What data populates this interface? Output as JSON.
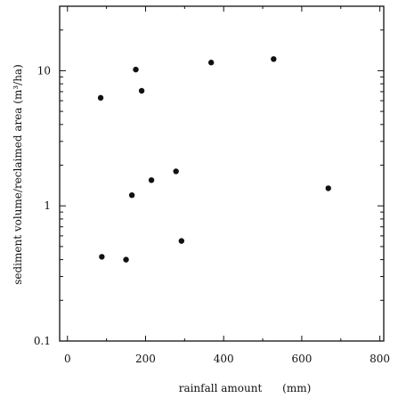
{
  "chart_data": {
    "type": "scatter",
    "xlabel": "rainfall amount      (mm)",
    "ylabel": "sediment volume/reclaimed area (m³/ha)",
    "xlim": [
      -20,
      810
    ],
    "ylim": [
      0.1,
      30
    ],
    "yscale": "log",
    "x_ticks": [
      0,
      200,
      400,
      600,
      800
    ],
    "x_tick_labels": [
      "0",
      "200",
      "400",
      "600",
      "800"
    ],
    "y_ticks": [
      0.1,
      1,
      10
    ],
    "y_tick_labels": [
      "0.1",
      "1",
      "10"
    ],
    "grid": false,
    "marker_color": "#111111",
    "points": [
      {
        "x": 85,
        "y": 6.3
      },
      {
        "x": 175,
        "y": 10.2
      },
      {
        "x": 190,
        "y": 7.1
      },
      {
        "x": 368,
        "y": 11.5
      },
      {
        "x": 528,
        "y": 12.2
      },
      {
        "x": 165,
        "y": 1.2
      },
      {
        "x": 215,
        "y": 1.55
      },
      {
        "x": 278,
        "y": 1.8
      },
      {
        "x": 668,
        "y": 1.35
      },
      {
        "x": 292,
        "y": 0.55
      },
      {
        "x": 88,
        "y": 0.42
      },
      {
        "x": 150,
        "y": 0.4
      }
    ]
  }
}
